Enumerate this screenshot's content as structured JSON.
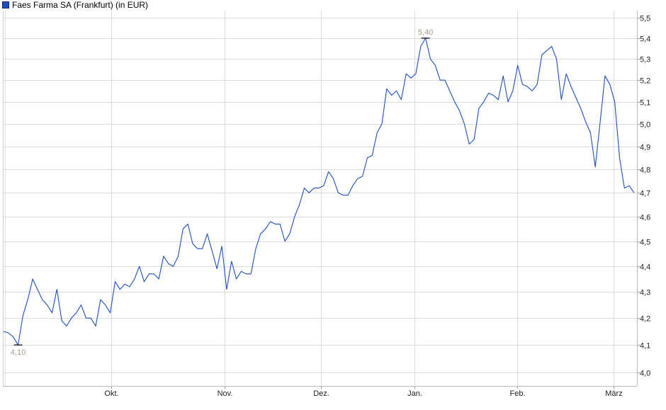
{
  "chart_data": {
    "type": "line",
    "title": "",
    "legend": [
      {
        "label": "Faes Farma SA (Frankfurt) (in EUR)",
        "color": "#1c4fbd"
      }
    ],
    "legend_position": "top-left",
    "y_scale": "log",
    "ylim": [
      3.96,
      5.55
    ],
    "y_ticks": [
      "4,0",
      "4,1",
      "4,2",
      "4,3",
      "4,4",
      "4,5",
      "4,6",
      "4,7",
      "4,8",
      "4,9",
      "5,0",
      "5,1",
      "5,2",
      "5,3",
      "5,4",
      "5,5"
    ],
    "y_tick_values": [
      4.0,
      4.1,
      4.2,
      4.3,
      4.4,
      4.5,
      4.6,
      4.7,
      4.8,
      4.9,
      5.0,
      5.1,
      5.2,
      5.3,
      5.4,
      5.5
    ],
    "x_ticks": [
      "Okt.",
      "Nov.",
      "Dez.",
      "Jan.",
      "Feb.",
      "März"
    ],
    "grid": true,
    "line_color": "#1c4fbd",
    "annotations": [
      {
        "label": "4,10",
        "value": 4.1,
        "type": "low"
      },
      {
        "label": "5,40",
        "value": 5.4,
        "type": "high"
      }
    ],
    "series": [
      {
        "name": "Faes Farma SA (Frankfurt) (in EUR)",
        "values": [
          4.15,
          4.145,
          4.13,
          4.1,
          4.21,
          4.27,
          4.35,
          4.31,
          4.27,
          4.25,
          4.22,
          4.31,
          4.19,
          4.17,
          4.2,
          4.22,
          4.25,
          4.2,
          4.2,
          4.17,
          4.27,
          4.25,
          4.22,
          4.34,
          4.31,
          4.33,
          4.32,
          4.35,
          4.4,
          4.34,
          4.37,
          4.37,
          4.35,
          4.44,
          4.41,
          4.4,
          4.44,
          4.55,
          4.57,
          4.49,
          4.47,
          4.47,
          4.53,
          4.46,
          4.39,
          4.48,
          4.31,
          4.42,
          4.35,
          4.38,
          4.37,
          4.37,
          4.47,
          4.53,
          4.55,
          4.58,
          4.57,
          4.57,
          4.5,
          4.53,
          4.6,
          4.65,
          4.72,
          4.7,
          4.72,
          4.72,
          4.73,
          4.79,
          4.76,
          4.7,
          4.69,
          4.69,
          4.73,
          4.76,
          4.77,
          4.85,
          4.86,
          4.96,
          5.0,
          5.16,
          5.13,
          5.15,
          5.11,
          5.23,
          5.21,
          5.23,
          5.36,
          5.4,
          5.3,
          5.27,
          5.2,
          5.2,
          5.15,
          5.1,
          5.06,
          5.0,
          4.91,
          4.93,
          5.07,
          5.1,
          5.14,
          5.13,
          5.11,
          5.22,
          5.1,
          5.15,
          5.27,
          5.18,
          5.17,
          5.15,
          5.18,
          5.32,
          5.34,
          5.36,
          5.3,
          5.11,
          5.23,
          5.17,
          5.12,
          5.07,
          5.01,
          4.96,
          4.81,
          5.01,
          5.22,
          5.18,
          5.1,
          4.85,
          4.72,
          4.73,
          4.7
        ]
      }
    ]
  }
}
